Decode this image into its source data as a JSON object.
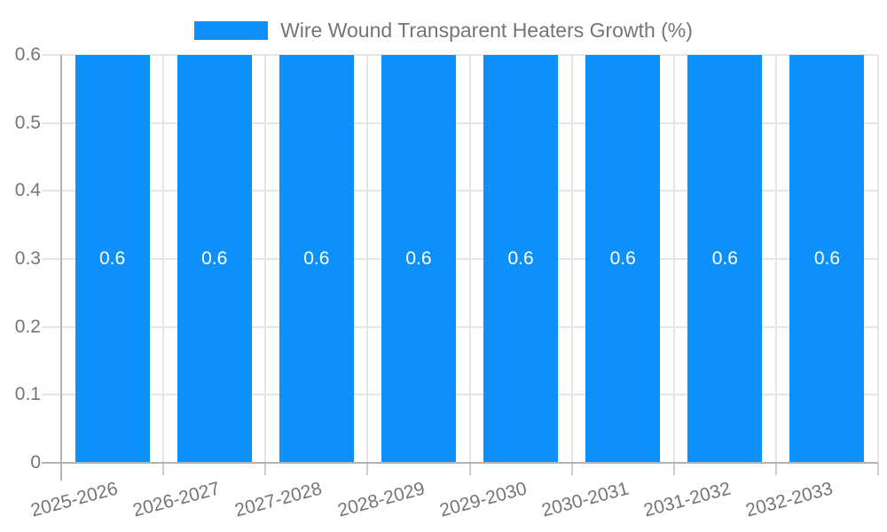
{
  "chart_data": {
    "type": "bar",
    "title": "Wire Wound Transparent Heaters Growth (%)",
    "categories": [
      "2025-2026",
      "2026-2027",
      "2027-2028",
      "2028-2029",
      "2029-2030",
      "2030-2031",
      "2031-2032",
      "2032-2033"
    ],
    "series": [
      {
        "name": "Wire Wound Transparent Heaters Growth (%)",
        "values": [
          0.6,
          0.6,
          0.6,
          0.6,
          0.6,
          0.6,
          0.6,
          0.6
        ]
      }
    ],
    "value_labels": [
      "0.6",
      "0.6",
      "0.6",
      "0.6",
      "0.6",
      "0.6",
      "0.6",
      "0.6"
    ],
    "xlabel": "",
    "ylabel": "",
    "ylim": [
      0,
      0.6
    ],
    "yticks": [
      0,
      0.1,
      0.2,
      0.3,
      0.4,
      0.5,
      0.6
    ],
    "ytick_labels": [
      "0",
      "0.1",
      "0.2",
      "0.3",
      "0.4",
      "0.5",
      "0.6"
    ],
    "grid": true,
    "legend_position": "top",
    "x_label_rotation_deg": -15,
    "colors": {
      "bar": "#0e90fa",
      "grid_line": "#e6e6e6",
      "axis_line": "#b3b3b3",
      "tick_line": "#cccccc",
      "axis_text": "#757575",
      "value_label": "#ffffff",
      "background": "#ffffff"
    }
  }
}
